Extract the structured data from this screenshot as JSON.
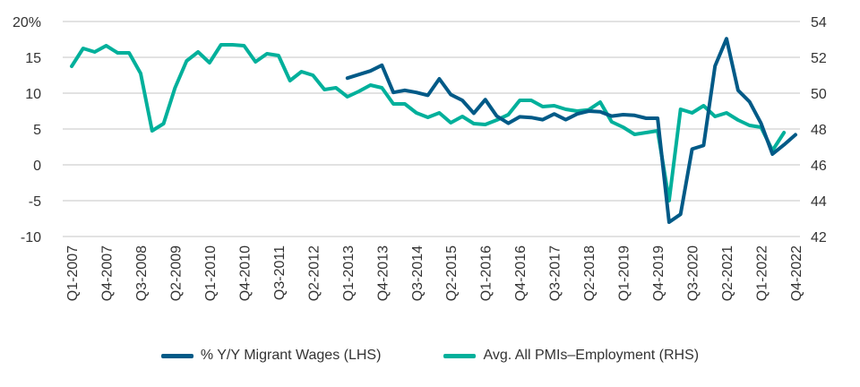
{
  "chart_data": {
    "type": "line",
    "title": "",
    "xlabel": "",
    "ylabel_left": "",
    "ylabel_right": "",
    "categories": [
      "Q1-2007",
      "Q2-2007",
      "Q3-2007",
      "Q4-2007",
      "Q1-2008",
      "Q2-2008",
      "Q3-2008",
      "Q4-2008",
      "Q1-2009",
      "Q2-2009",
      "Q3-2009",
      "Q4-2009",
      "Q1-2010",
      "Q2-2010",
      "Q3-2010",
      "Q4-2010",
      "Q1-2011",
      "Q2-2011",
      "Q3-2011",
      "Q4-2011",
      "Q1-2012",
      "Q2-2012",
      "Q3-2012",
      "Q4-2012",
      "Q1-2013",
      "Q2-2013",
      "Q3-2013",
      "Q4-2013",
      "Q1-2014",
      "Q2-2014",
      "Q3-2014",
      "Q4-2014",
      "Q1-2015",
      "Q2-2015",
      "Q3-2015",
      "Q4-2015",
      "Q1-2016",
      "Q2-2016",
      "Q3-2016",
      "Q4-2016",
      "Q1-2017",
      "Q2-2017",
      "Q3-2017",
      "Q4-2017",
      "Q1-2018",
      "Q2-2018",
      "Q3-2018",
      "Q4-2018",
      "Q1-2019",
      "Q2-2019",
      "Q3-2019",
      "Q4-2019",
      "Q1-2020",
      "Q2-2020",
      "Q3-2020",
      "Q4-2020",
      "Q1-2021",
      "Q2-2021",
      "Q3-2021",
      "Q4-2021",
      "Q1-2022",
      "Q2-2022",
      "Q3-2022",
      "Q4-2022"
    ],
    "x_tick_labels": [
      "Q1-2007",
      "Q4-2007",
      "Q3-2008",
      "Q2-2009",
      "Q1-2010",
      "Q4-2010",
      "Q3-2011",
      "Q2-2012",
      "Q1-2013",
      "Q4-2013",
      "Q3-2014",
      "Q2-2015",
      "Q1-2016",
      "Q4-2016",
      "Q3-2017",
      "Q2-2018",
      "Q1-2019",
      "Q4-2019",
      "Q3-2020",
      "Q2-2021",
      "Q1-2022",
      "Q4-2022"
    ],
    "y_left": {
      "range": [
        -10,
        20
      ],
      "ticks": [
        "20%",
        "15",
        "10",
        "5",
        "0",
        "-5",
        "-10"
      ],
      "tick_values": [
        20,
        15,
        10,
        5,
        0,
        -5,
        -10
      ]
    },
    "y_right": {
      "range": [
        42,
        54
      ],
      "ticks": [
        "54",
        "52",
        "50",
        "48",
        "46",
        "44",
        "42"
      ],
      "tick_values": [
        54,
        52,
        50,
        48,
        46,
        44,
        42
      ]
    },
    "grid": true,
    "legend_position": "bottom",
    "series": [
      {
        "name": "% Y/Y Migrant Wages (LHS)",
        "axis": "left",
        "color": "#005A87",
        "values": [
          null,
          null,
          null,
          null,
          null,
          null,
          null,
          null,
          null,
          null,
          null,
          null,
          null,
          null,
          null,
          null,
          null,
          null,
          null,
          null,
          null,
          null,
          null,
          null,
          12.1,
          12.6,
          13.1,
          13.9,
          10.1,
          10.4,
          10.1,
          9.7,
          12.0,
          9.8,
          9.0,
          7.2,
          9.1,
          6.8,
          5.8,
          6.7,
          6.6,
          6.3,
          7.1,
          6.3,
          7.1,
          7.5,
          7.4,
          6.8,
          7.0,
          6.9,
          6.5,
          6.5,
          -8.0,
          -6.9,
          2.2,
          2.7,
          13.8,
          17.6,
          10.4,
          8.8,
          5.8,
          1.5,
          2.8,
          4.2
        ]
      },
      {
        "name": "Avg. All PMIs–Employment (RHS)",
        "axis": "right",
        "color": "#00B09B",
        "values": [
          51.5,
          52.5,
          52.3,
          52.65,
          52.25,
          52.25,
          51.1,
          47.9,
          48.3,
          50.3,
          51.8,
          52.3,
          51.7,
          52.7,
          52.7,
          52.65,
          51.75,
          52.2,
          52.1,
          50.7,
          51.2,
          51.0,
          50.2,
          50.3,
          49.8,
          50.1,
          50.45,
          50.3,
          49.4,
          49.4,
          48.9,
          48.65,
          48.9,
          48.35,
          48.7,
          48.3,
          48.25,
          48.5,
          48.8,
          49.6,
          49.6,
          49.25,
          49.3,
          49.1,
          49.0,
          49.07,
          49.5,
          48.4,
          48.1,
          47.7,
          47.8,
          47.9,
          44.0,
          49.1,
          48.9,
          49.3,
          48.7,
          48.9,
          48.5,
          48.2,
          48.1,
          46.8,
          47.8,
          null
        ]
      }
    ]
  }
}
